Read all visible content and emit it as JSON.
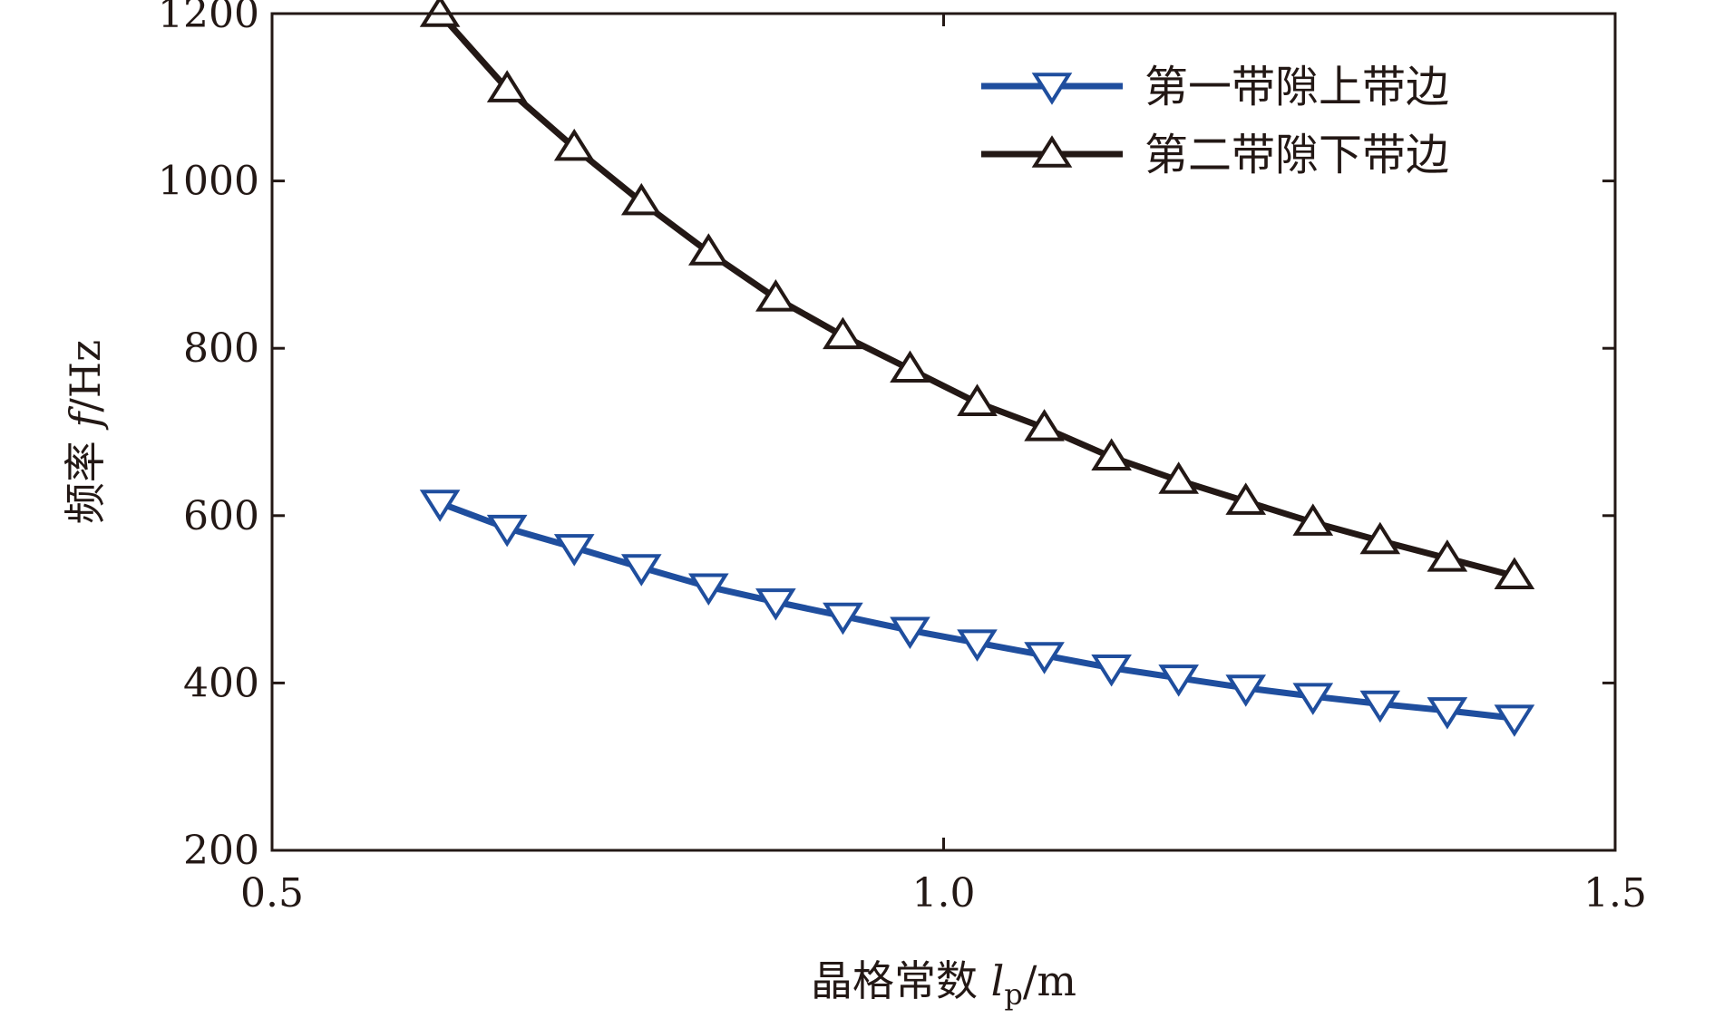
{
  "chart_data": {
    "type": "line",
    "xlabel_prefix": "晶格常数 ",
    "xlabel_var": "l",
    "xlabel_sub": "p",
    "xlabel_unit": "/m",
    "ylabel_prefix": "频率 ",
    "ylabel_var": "f",
    "ylabel_unit": "/Hz",
    "xlim": [
      0.5,
      1.5
    ],
    "ylim": [
      200,
      1200
    ],
    "xticks": [
      0.5,
      1.0,
      1.5
    ],
    "xtick_labels": [
      "0.5",
      "1.0",
      "1.5"
    ],
    "yticks": [
      200,
      400,
      600,
      800,
      1000,
      1200
    ],
    "ytick_labels": [
      "200",
      "400",
      "600",
      "800",
      "1000",
      "1200"
    ],
    "legend_position": "top-right",
    "grid": false,
    "x": [
      0.625,
      0.675,
      0.725,
      0.775,
      0.825,
      0.875,
      0.925,
      0.975,
      1.025,
      1.075,
      1.125,
      1.175,
      1.225,
      1.275,
      1.325,
      1.375,
      1.425
    ],
    "series": [
      {
        "name": "第一带隙上带边",
        "color": "#1f4e9e",
        "marker": "triangle-down",
        "values": [
          615,
          585,
          562,
          538,
          515,
          497,
          480,
          463,
          448,
          433,
          418,
          406,
          394,
          384,
          375,
          367,
          358
        ]
      },
      {
        "name": "第二带隙下带边",
        "color": "#231815",
        "marker": "triangle-up",
        "values": [
          1200,
          1110,
          1040,
          975,
          915,
          860,
          815,
          775,
          735,
          705,
          670,
          642,
          617,
          592,
          570,
          549,
          528
        ]
      }
    ]
  }
}
